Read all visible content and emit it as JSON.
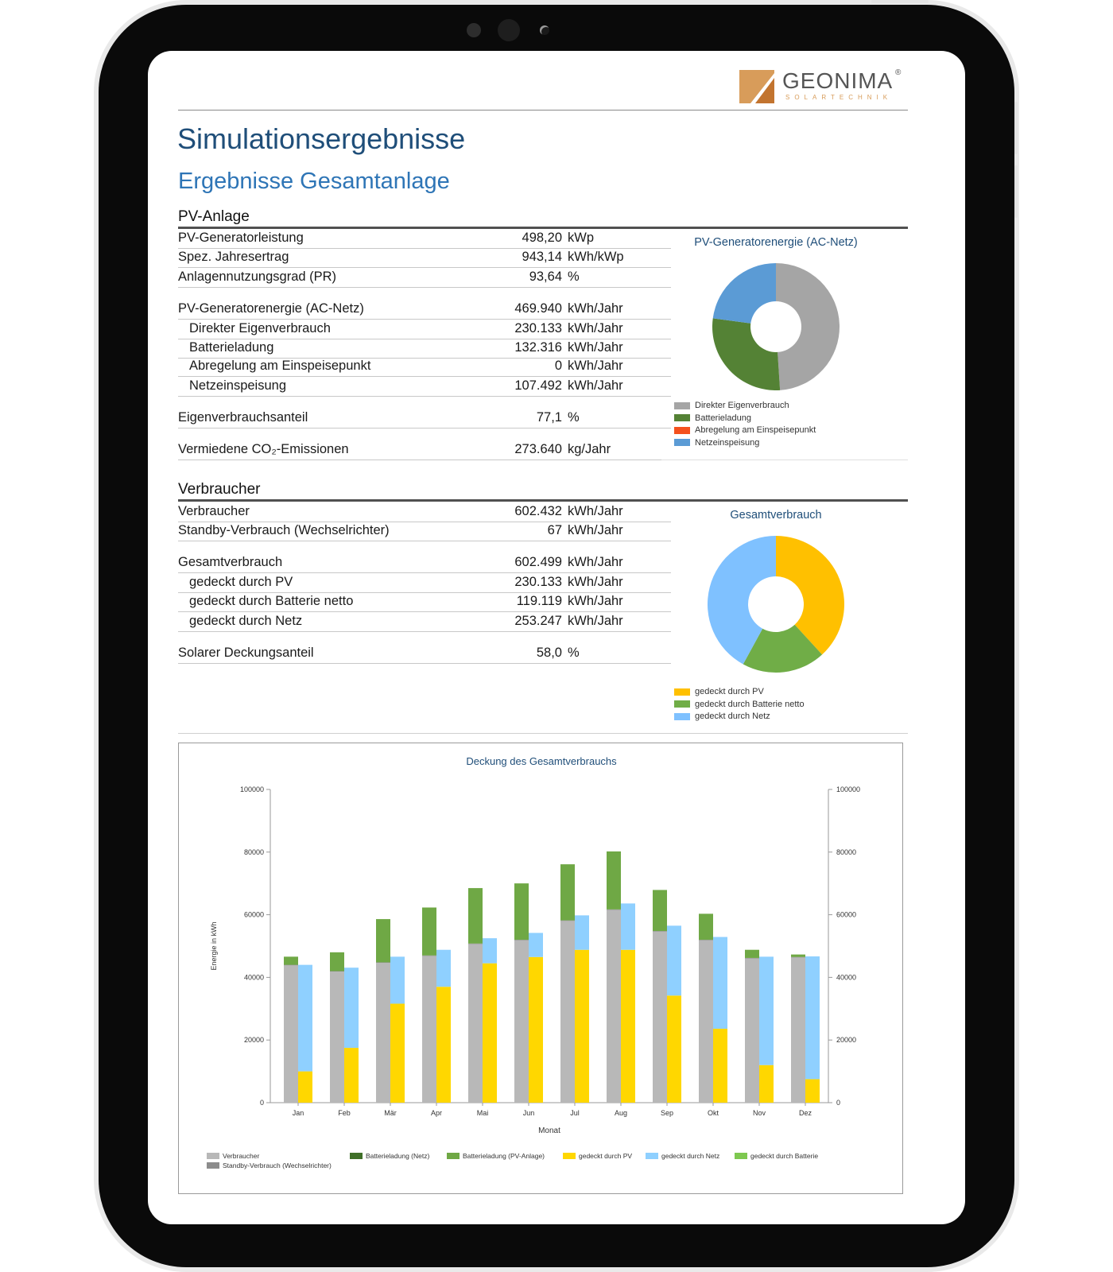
{
  "logo": {
    "name": "GEONIMA",
    "mark": "®",
    "tagline": "SOLARTECHNIK"
  },
  "page_title": "Simulationsergebnisse",
  "page_subtitle": "Ergebnisse Gesamtanlage",
  "pv": {
    "heading": "PV-Anlage",
    "rows": [
      {
        "label": "PV-Generatorleistung",
        "value": "498,20",
        "unit": "kWp",
        "indent": false
      },
      {
        "label": "Spez. Jahresertrag",
        "value": "943,14",
        "unit": "kWh/kWp",
        "indent": false
      },
      {
        "label": "Anlagennutzungsgrad (PR)",
        "value": "93,64",
        "unit": "%",
        "indent": false
      },
      {
        "label": "PV-Generatorenergie (AC-Netz)",
        "value": "469.940",
        "unit": "kWh/Jahr",
        "indent": false
      },
      {
        "label": "Direkter Eigenverbrauch",
        "value": "230.133",
        "unit": "kWh/Jahr",
        "indent": true
      },
      {
        "label": "Batterieladung",
        "value": "132.316",
        "unit": "kWh/Jahr",
        "indent": true
      },
      {
        "label": "Abregelung am Einspeisepunkt",
        "value": "0",
        "unit": "kWh/Jahr",
        "indent": true
      },
      {
        "label": "Netzeinspeisung",
        "value": "107.492",
        "unit": "kWh/Jahr",
        "indent": true
      },
      {
        "label": "Eigenverbrauchsanteil",
        "value": "77,1",
        "unit": "%",
        "indent": false
      },
      {
        "label": "Vermiedene CO₂-Emissionen",
        "value": "273.640",
        "unit": "kg/Jahr",
        "indent": false
      }
    ]
  },
  "verbraucher": {
    "heading": "Verbraucher",
    "rows": [
      {
        "label": "Verbraucher",
        "value": "602.432",
        "unit": "kWh/Jahr",
        "indent": false
      },
      {
        "label": "Standby-Verbrauch (Wechselrichter)",
        "value": "67",
        "unit": "kWh/Jahr",
        "indent": false
      },
      {
        "label": "Gesamtverbrauch",
        "value": "602.499",
        "unit": "kWh/Jahr",
        "indent": false
      },
      {
        "label": "gedeckt durch PV",
        "value": "230.133",
        "unit": "kWh/Jahr",
        "indent": true
      },
      {
        "label": "gedeckt durch Batterie netto",
        "value": "119.119",
        "unit": "kWh/Jahr",
        "indent": true
      },
      {
        "label": "gedeckt durch Netz",
        "value": "253.247",
        "unit": "kWh/Jahr",
        "indent": true
      },
      {
        "label": "Solarer Deckungsanteil",
        "value": "58,0",
        "unit": "%",
        "indent": false
      }
    ]
  },
  "colors": {
    "grey": "#a5a5a5",
    "dark_green": "#548235",
    "green": "#70ad47",
    "orange": "#f4511e",
    "blue": "#5b9bd5",
    "yellow": "#ffc000",
    "light_blue": "#7fc1ff",
    "bar_yellow": "#ffd700",
    "bar_blue": "#8fd0ff",
    "bar_green": "#6fb443",
    "bar_grey": "#b8b8b8"
  },
  "chart_data": [
    {
      "type": "pie",
      "title": "PV-Generatorenergie (AC-Netz)",
      "categories": [
        "Direkter Eigenverbrauch",
        "Batterieladung",
        "Abregelung am Einspeisepunkt",
        "Netzeinspeisung"
      ],
      "values": [
        230133,
        132316,
        0,
        107492
      ],
      "colors": [
        "#a5a5a5",
        "#548235",
        "#f4511e",
        "#5b9bd5"
      ]
    },
    {
      "type": "pie",
      "title": "Gesamtverbrauch",
      "categories": [
        "gedeckt durch PV",
        "gedeckt durch Batterie netto",
        "gedeckt durch Netz"
      ],
      "values": [
        230133,
        119119,
        253247
      ],
      "colors": [
        "#ffc000",
        "#70ad47",
        "#7fc1ff"
      ]
    },
    {
      "type": "bar",
      "title": "Deckung des Gesamtverbrauchs",
      "xlabel": "Monat",
      "ylabel": "Energie in kWh",
      "ylim": [
        0,
        100000
      ],
      "yticks": [
        0,
        20000,
        40000,
        60000,
        80000,
        100000
      ],
      "categories": [
        "Jan",
        "Feb",
        "Mär",
        "Apr",
        "Mai",
        "Jun",
        "Jul",
        "Aug",
        "Sep",
        "Okt",
        "Nov",
        "Dez"
      ],
      "stack_1": {
        "series": [
          {
            "name": "Verbraucher",
            "values": [
              44000,
              42000,
              44800,
              47000,
              50800,
              52000,
              58200,
              61700,
              54800,
              52000,
              46200,
              46500
            ],
            "color": "#b8b8b8"
          },
          {
            "name": "Standby-Verbrauch (Wechselrichter)",
            "values": [
              5,
              5,
              5,
              5,
              5,
              5,
              5,
              5,
              5,
              5,
              5,
              5
            ],
            "color": "#8c8c8c"
          },
          {
            "name": "Batterieladung (Netz)",
            "values": [
              0,
              0,
              0,
              0,
              0,
              0,
              0,
              0,
              0,
              0,
              0,
              0
            ],
            "color": "#3f6f28"
          },
          {
            "name": "Batterieladung (PV-Anlage)",
            "values": [
              2600,
              6000,
              13800,
              15300,
              17700,
              18000,
              17900,
              18500,
              13100,
              8300,
              2600,
              800
            ],
            "color": "#6fa845"
          }
        ]
      },
      "stack_2": {
        "series": [
          {
            "name": "gedeckt durch PV",
            "values": [
              10000,
              17500,
              31600,
              37000,
              44500,
              46500,
              48800,
              48800,
              34200,
              23600,
              12000,
              7500
            ],
            "color": "#ffd700"
          },
          {
            "name": "gedeckt durch Netz",
            "values": [
              34000,
              25600,
              15000,
              11800,
              8000,
              7700,
              11000,
              14800,
              22300,
              29300,
              34600,
              39200
            ],
            "color": "#8fd0ff"
          },
          {
            "name": "gedeckt durch Batterie",
            "values": [
              0,
              0,
              0,
              0,
              0,
              0,
              0,
              0,
              0,
              0,
              0,
              0
            ],
            "color": "#7ec850"
          }
        ]
      },
      "legend": [
        "Verbraucher",
        "Standby-Verbrauch (Wechselrichter)",
        "Batterieladung (Netz)",
        "Batterieladung (PV-Anlage)",
        "gedeckt durch PV",
        "gedeckt durch Netz",
        "gedeckt durch Batterie"
      ]
    }
  ]
}
